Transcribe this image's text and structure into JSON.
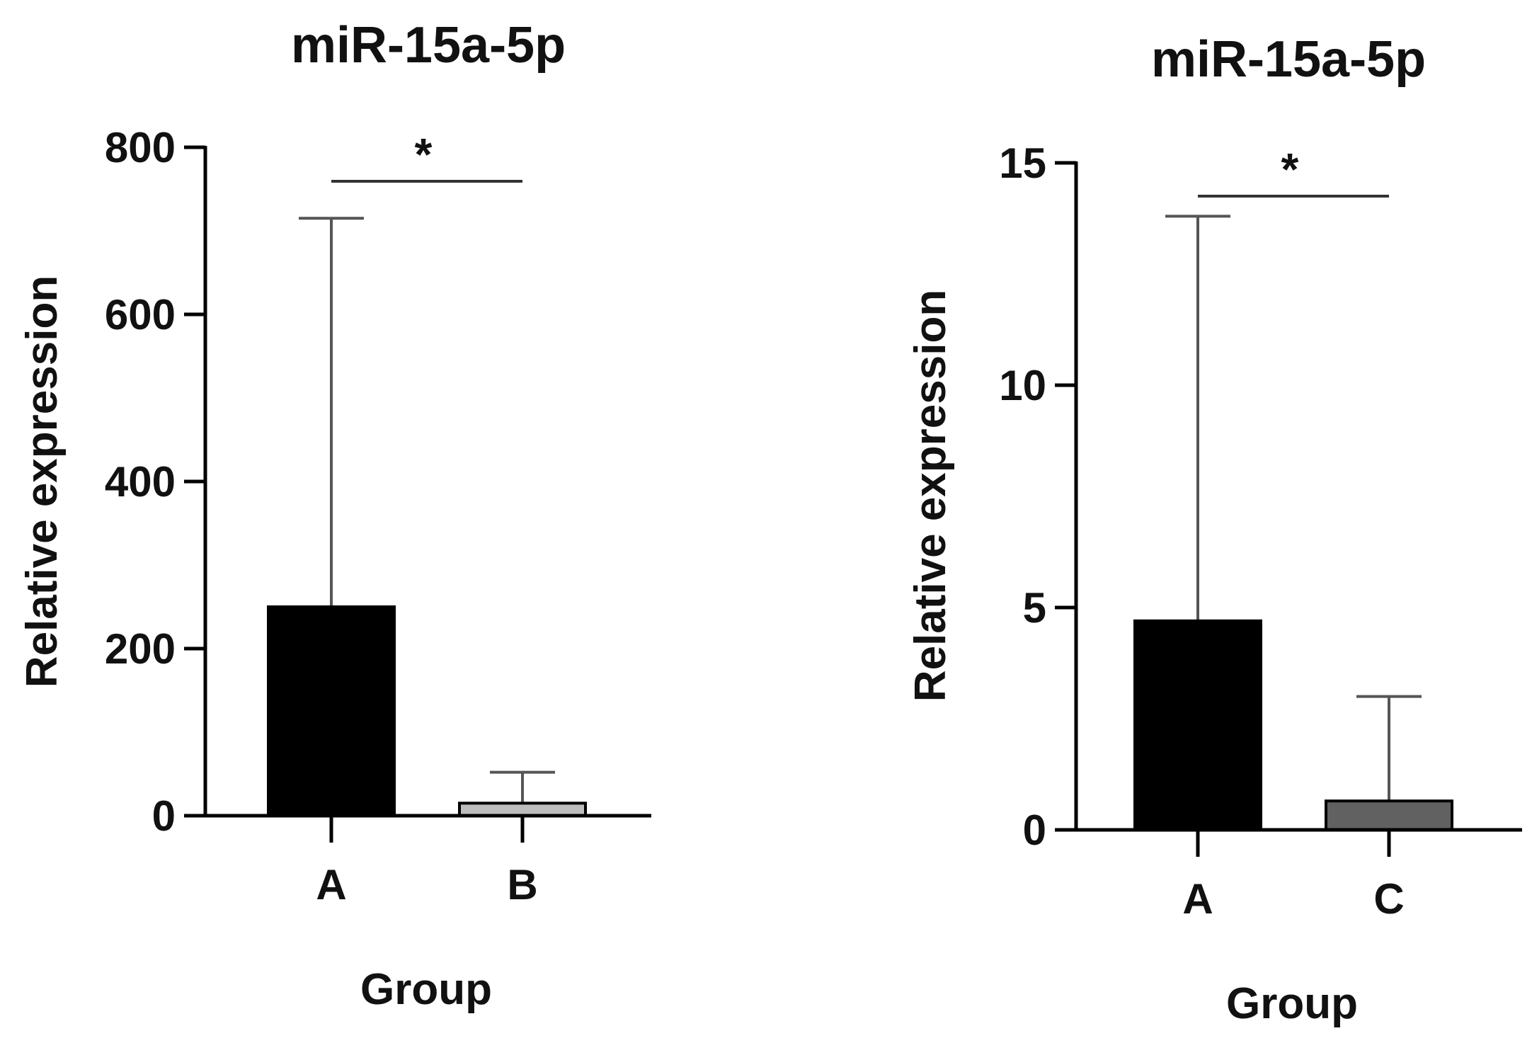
{
  "chart_data": [
    {
      "type": "bar",
      "title": "miR-15a-5p",
      "xlabel": "Group",
      "ylabel": "Relative expression",
      "categories": [
        "A",
        "B"
      ],
      "values": [
        250,
        15
      ],
      "error_upper": [
        715,
        52
      ],
      "ylim": [
        0,
        800
      ],
      "yticks": [
        "0",
        "200",
        "400",
        "600",
        "800"
      ],
      "ytick_values": [
        0,
        200,
        400,
        600,
        800
      ],
      "bar_colors": [
        "#000000",
        "#bdbdbd"
      ],
      "significance": {
        "label": "*",
        "between": [
          "A",
          "B"
        ]
      },
      "grid": false
    },
    {
      "type": "bar",
      "title": "miR-15a-5p",
      "xlabel": "Group",
      "ylabel": "Relative expression",
      "categories": [
        "A",
        "C"
      ],
      "values": [
        4.7,
        0.65
      ],
      "error_upper": [
        13.8,
        3.0
      ],
      "ylim": [
        0,
        15
      ],
      "yticks": [
        "0",
        "5",
        "10",
        "15"
      ],
      "ytick_values": [
        0,
        5,
        10,
        15
      ],
      "bar_colors": [
        "#000000",
        "#616161"
      ],
      "significance": {
        "label": "*",
        "between": [
          "A",
          "C"
        ]
      },
      "grid": false
    }
  ]
}
